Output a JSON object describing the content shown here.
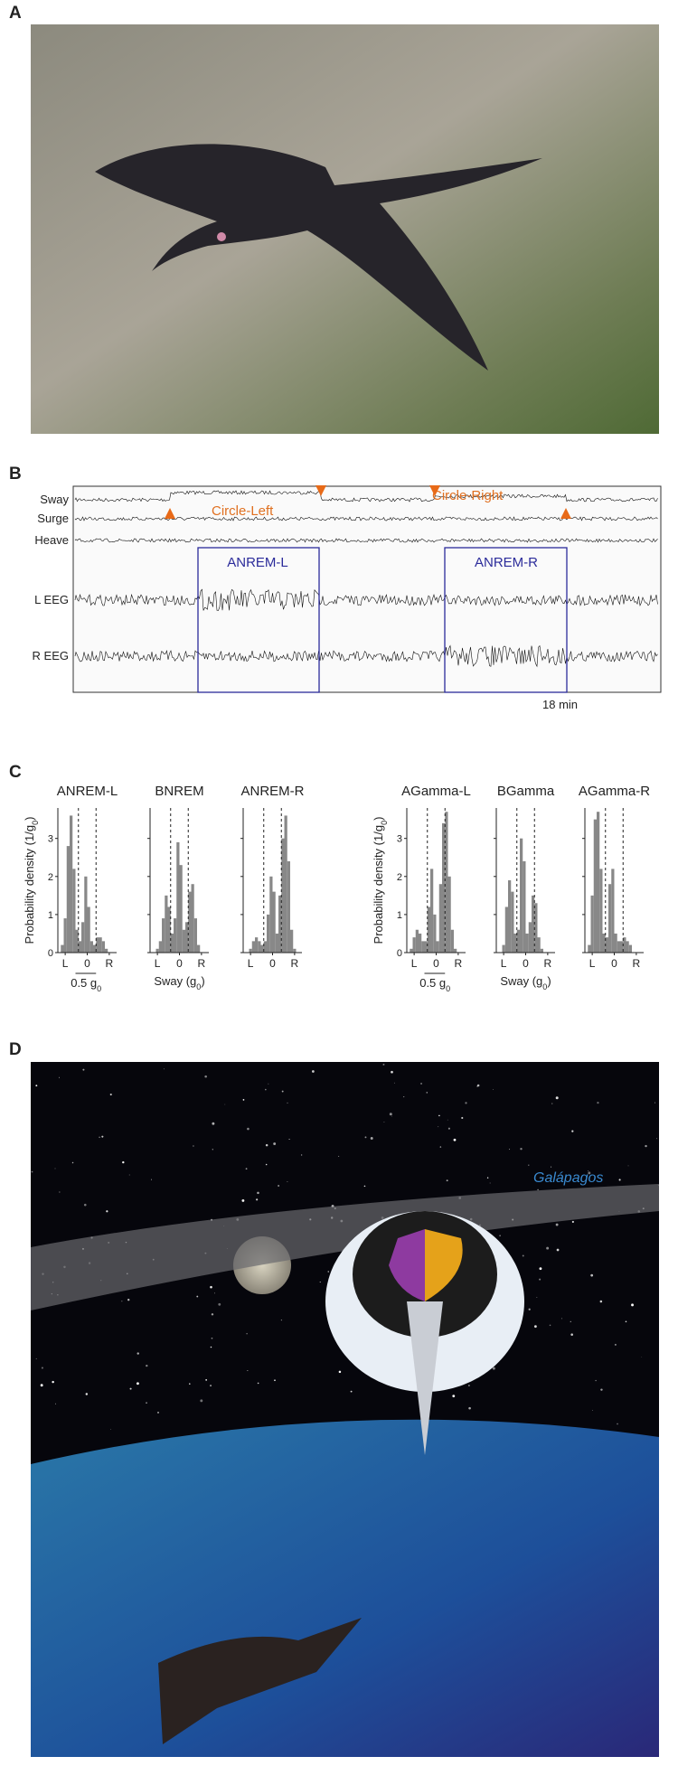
{
  "panels": {
    "A": {
      "label": "A"
    },
    "B": {
      "label": "B",
      "traces": [
        "Sway",
        "Surge",
        "Heave",
        "L EEG",
        "R EEG"
      ],
      "annotations": [
        "Circle-Left",
        "Circle-Right"
      ],
      "boxes": [
        "ANREM-L",
        "ANREM-R"
      ],
      "scale_bar": "18 min"
    },
    "C": {
      "label": "C",
      "y_label": {
        "text": "Probability density (1/g",
        "sub": "0",
        "close": ")"
      },
      "x_label": {
        "text": "Sway (g",
        "sub": "0",
        "close": ")"
      },
      "scale_bar": {
        "text": "0.5 g",
        "sub": "0"
      },
      "chart_data": [
        {
          "type": "histogram",
          "title": "ANREM-L",
          "counts": [
            0,
            0.2,
            0.9,
            2.8,
            3.6,
            2.2,
            0.6,
            0.3,
            0.8,
            2.0,
            1.2,
            0.3,
            0.2,
            0.4,
            0.4,
            0.3,
            0.1,
            0,
            0,
            0
          ],
          "thresholds": [
            -0.3,
            0.3
          ]
        },
        {
          "type": "histogram",
          "title": "BNREM",
          "counts": [
            0,
            0,
            0.1,
            0.3,
            0.9,
            1.5,
            1.2,
            0.5,
            0.9,
            2.9,
            2.3,
            0.6,
            0.8,
            1.6,
            1.8,
            0.9,
            0.2,
            0,
            0,
            0
          ],
          "thresholds": [
            -0.3,
            0.3
          ]
        },
        {
          "type": "histogram",
          "title": "ANREM-R",
          "counts": [
            0,
            0,
            0.1,
            0.3,
            0.4,
            0.3,
            0.2,
            0.3,
            1.0,
            2.0,
            1.6,
            0.5,
            1.5,
            3.0,
            3.6,
            2.4,
            0.6,
            0.1,
            0,
            0
          ],
          "thresholds": [
            -0.3,
            0.3
          ]
        },
        {
          "type": "histogram",
          "title": "AGamma-L",
          "counts": [
            0,
            0.1,
            0.4,
            0.6,
            0.5,
            0.3,
            0.3,
            1.2,
            2.2,
            1.0,
            0.3,
            1.8,
            3.4,
            3.7,
            2.0,
            0.6,
            0.1,
            0,
            0,
            0
          ],
          "thresholds": [
            -0.3,
            0.3
          ]
        },
        {
          "type": "histogram",
          "title": "BGamma",
          "counts": [
            0,
            0,
            0.2,
            1.2,
            1.9,
            1.6,
            0.5,
            0.6,
            3.0,
            2.4,
            0.5,
            0.8,
            1.5,
            1.3,
            0.4,
            0.1,
            0,
            0,
            0,
            0
          ],
          "thresholds": [
            -0.3,
            0.3
          ]
        },
        {
          "type": "histogram",
          "title": "AGamma-R",
          "counts": [
            0,
            0.2,
            1.5,
            3.5,
            3.7,
            2.2,
            0.5,
            0.4,
            1.8,
            2.2,
            0.5,
            0.3,
            0.3,
            0.4,
            0.3,
            0.2,
            0,
            0,
            0,
            0
          ],
          "thresholds": [
            -0.3,
            0.3
          ]
        }
      ],
      "bins": [
        -1,
        -0.9,
        -0.8,
        -0.7,
        -0.6,
        -0.5,
        -0.4,
        -0.3,
        -0.2,
        -0.1,
        0,
        0.1,
        0.2,
        0.3,
        0.4,
        0.5,
        0.6,
        0.7,
        0.8,
        0.9,
        1
      ],
      "xlim": [
        -1,
        1
      ],
      "ylim": [
        0,
        3.8
      ],
      "yticks": [
        0,
        1,
        2,
        3
      ],
      "xticks": [
        {
          "value": -0.75,
          "label": "L"
        },
        0,
        {
          "value": 0.75,
          "label": "R"
        }
      ],
      "color": "#888888"
    },
    "D": {
      "label": "D",
      "place": "Galápagos"
    }
  }
}
